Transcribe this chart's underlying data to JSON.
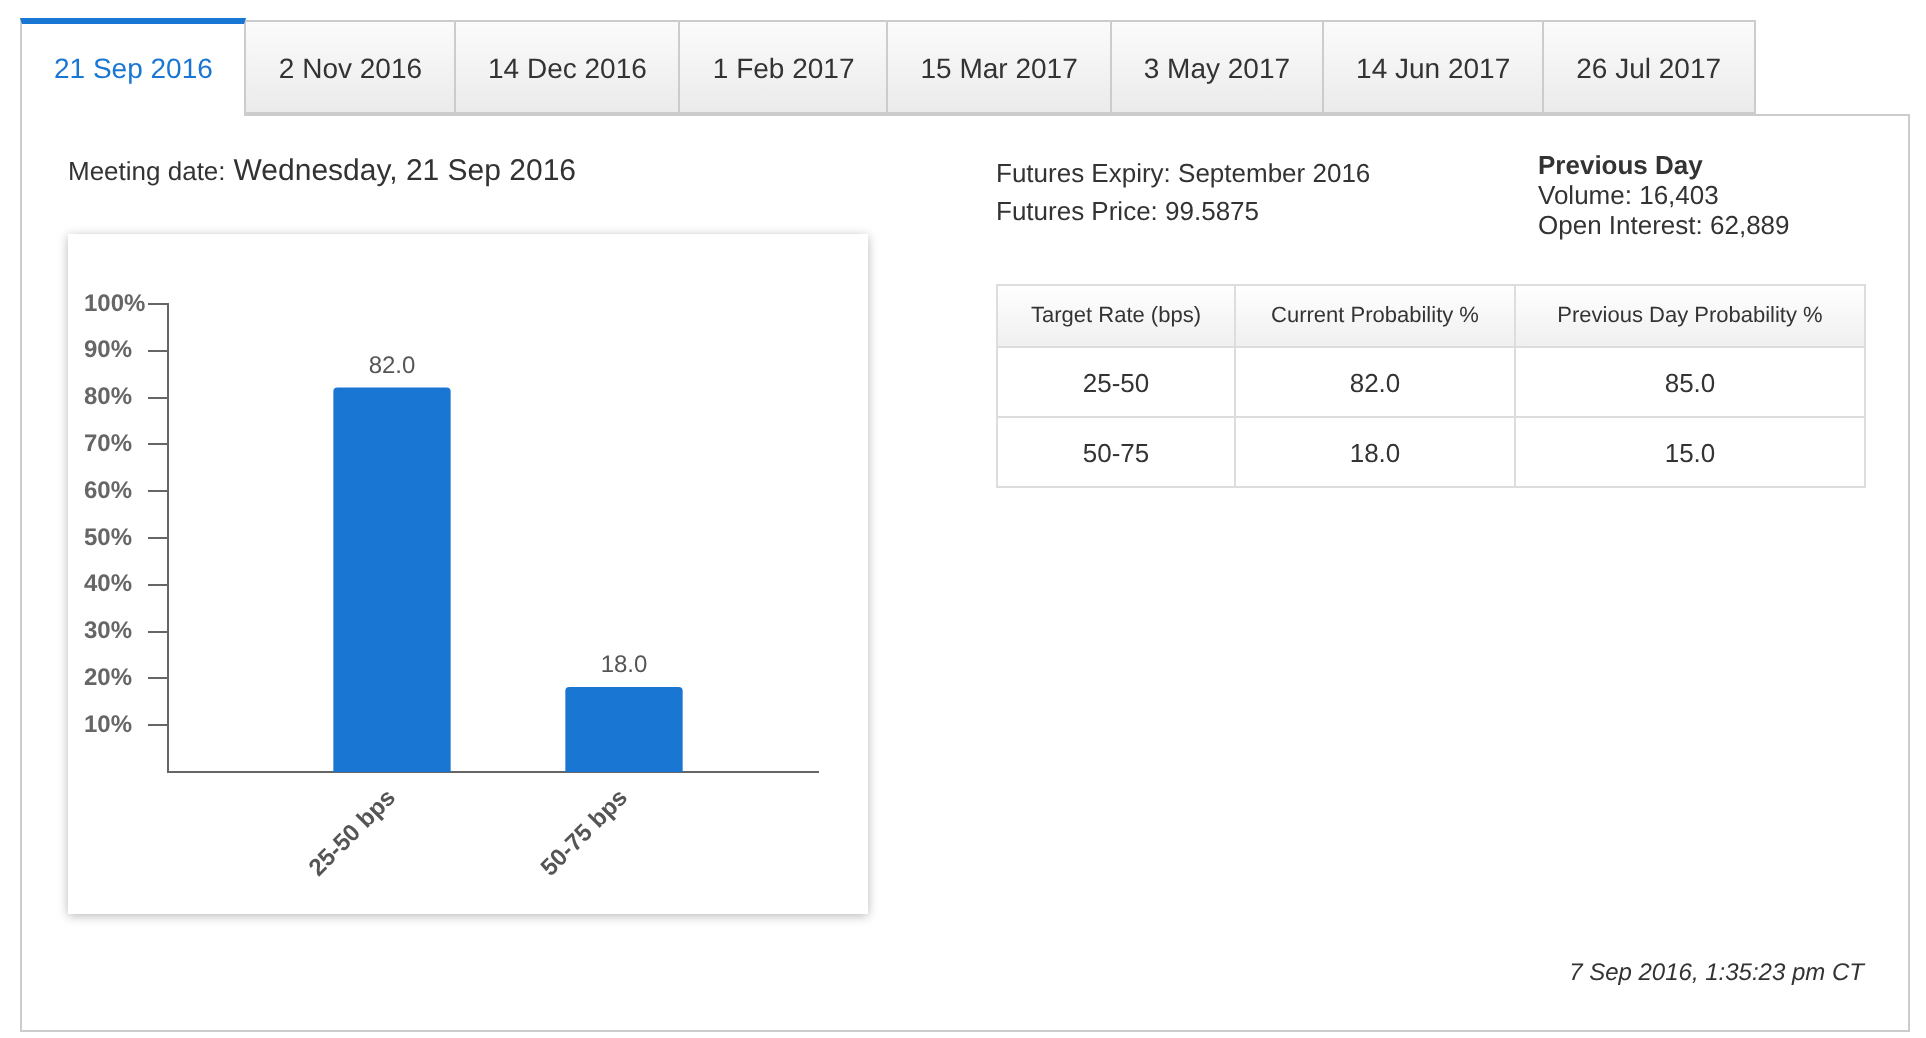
{
  "chart_data": {
    "type": "bar",
    "categories": [
      "25-50 bps",
      "50-75 bps"
    ],
    "values": [
      82,
      18
    ],
    "color": "#1976d2",
    "value_labels": [
      "82.0",
      "18.0"
    ],
    "ylim": [
      0,
      100
    ],
    "yticks": [
      {
        "value": 10,
        "label": "10%"
      },
      {
        "value": 20,
        "label": "20%"
      },
      {
        "value": 30,
        "label": "30%"
      },
      {
        "value": 40,
        "label": "40%"
      },
      {
        "value": 50,
        "label": "50%"
      },
      {
        "value": 60,
        "label": "60%"
      },
      {
        "value": 70,
        "label": "70%"
      },
      {
        "value": 80,
        "label": "80%"
      },
      {
        "value": 90,
        "label": "90%"
      },
      {
        "value": 100,
        "label": "100%"
      }
    ],
    "annotations": [
      "21 Sep 2016",
      "2 Nov 2016",
      "14 Dec 2016",
      "1 Feb 2017",
      "15 Mar 2017",
      "3 May 2017",
      "14 Jun 2017",
      "26 Jul 2017",
      "Meeting date:",
      "Wednesday, 21 Sep 2016",
      "Futures Expiry: September 2016",
      "Futures Price: 99.5875",
      "Previous Day",
      "Volume: 16,403",
      "Open Interest: 62,889",
      "Target Rate (bps)",
      "Current Probability %",
      "Previous Day Probability %",
      "25-50",
      "82.0",
      "85.0",
      "50-75",
      "18.0",
      "15.0",
      "7 Sep 2016, 1:35:23 pm CT"
    ]
  }
}
